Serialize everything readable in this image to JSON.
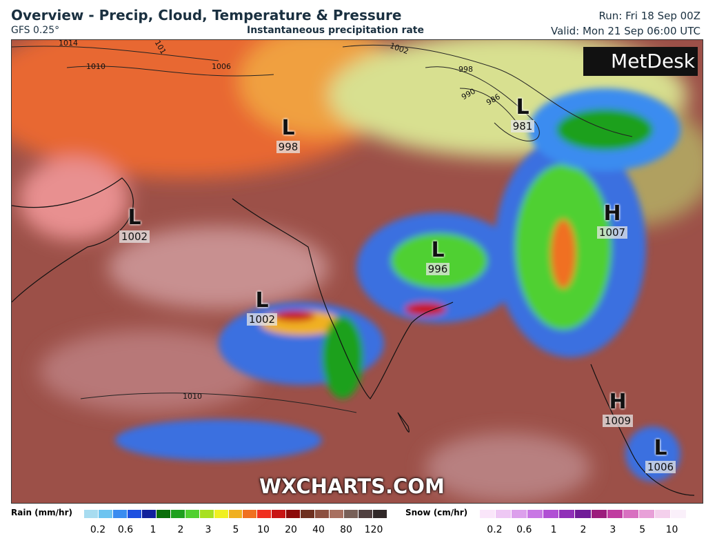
{
  "header": {
    "title": "Overview - Precip, Cloud, Temperature & Pressure",
    "model": "GFS 0.25°",
    "subtitle": "Instantaneous precipitation rate",
    "run": "Run: Fri 18 Sep 00Z",
    "valid": "Valid: Mon 21 Sep 06:00 UTC"
  },
  "logo": "MetDesk",
  "watermark": "WXCHARTS.COM",
  "isobar_labels": [
    "1014",
    "101",
    "1010",
    "1006",
    "1002",
    "998",
    "990",
    "986",
    "1010"
  ],
  "pressure_systems": [
    {
      "type": "L",
      "value": "998"
    },
    {
      "type": "L",
      "value": "981"
    },
    {
      "type": "L",
      "value": "1002"
    },
    {
      "type": "H",
      "value": "1007"
    },
    {
      "type": "L",
      "value": "996"
    },
    {
      "type": "L",
      "value": "1002"
    },
    {
      "type": "H",
      "value": "1009"
    },
    {
      "type": "L",
      "value": "1006"
    }
  ],
  "legend": {
    "rain": {
      "title": "Rain (mm/hr)",
      "labels": [
        "0.2",
        "0.6",
        "1",
        "2",
        "3",
        "5",
        "10",
        "20",
        "40",
        "80",
        "120"
      ],
      "colors": [
        "#a8dcf0",
        "#6ec4f0",
        "#3a8cf0",
        "#1e50e0",
        "#10209c",
        "#0a6e0a",
        "#1ea01e",
        "#50d030",
        "#a8e020",
        "#f0f020",
        "#f0b020",
        "#f07020",
        "#f03020",
        "#c81414",
        "#8c0a0a",
        "#6e3020",
        "#8c5040",
        "#a87060",
        "#786058",
        "#504040",
        "#302828"
      ]
    },
    "snow": {
      "title": "Snow (cm/hr)",
      "labels": [
        "0.2",
        "0.6",
        "1",
        "2",
        "3",
        "5",
        "10"
      ],
      "colors": [
        "#fae6fa",
        "#eec8f4",
        "#dca0ec",
        "#c878e4",
        "#b050d4",
        "#9030b8",
        "#701c98",
        "#9c1c7c",
        "#c03ca0",
        "#d870c0",
        "#e8a0d8",
        "#f4d0ec",
        "#faf0fa"
      ]
    }
  }
}
